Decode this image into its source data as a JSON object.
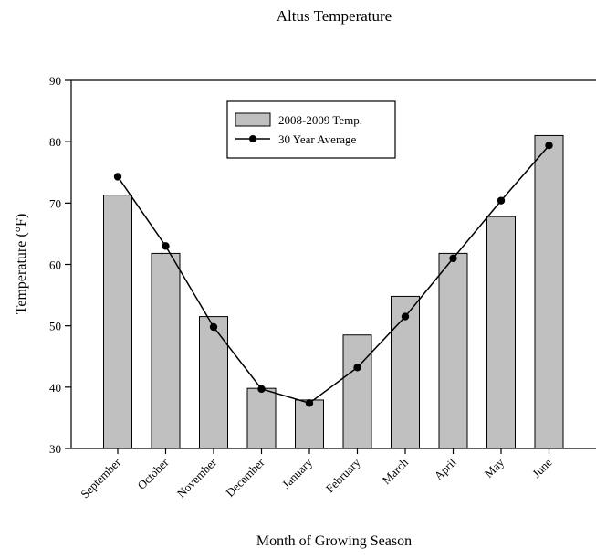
{
  "chart_data": {
    "type": "bar",
    "title": "Altus Temperature",
    "xlabel": "Month of Growing Season",
    "ylabel": "Temperature (°F)",
    "categories": [
      "September",
      "October",
      "November",
      "December",
      "January",
      "February",
      "March",
      "April",
      "May",
      "June"
    ],
    "series": [
      {
        "name": "2008-2009 Temp.",
        "type": "bar",
        "values": [
          71.3,
          61.8,
          51.5,
          39.8,
          37.9,
          48.5,
          54.8,
          61.8,
          67.8,
          81.0
        ],
        "color": "#c0c0c0"
      },
      {
        "name": "30 Year Average",
        "type": "line",
        "values": [
          74.3,
          63.0,
          49.8,
          39.7,
          37.4,
          43.2,
          51.5,
          61.0,
          70.4,
          79.4
        ],
        "color": "#000000"
      }
    ],
    "ylim": [
      30,
      90
    ],
    "yticks": [
      30,
      40,
      50,
      60,
      70,
      80,
      90
    ],
    "grid": false,
    "legend_position": "top-center"
  }
}
